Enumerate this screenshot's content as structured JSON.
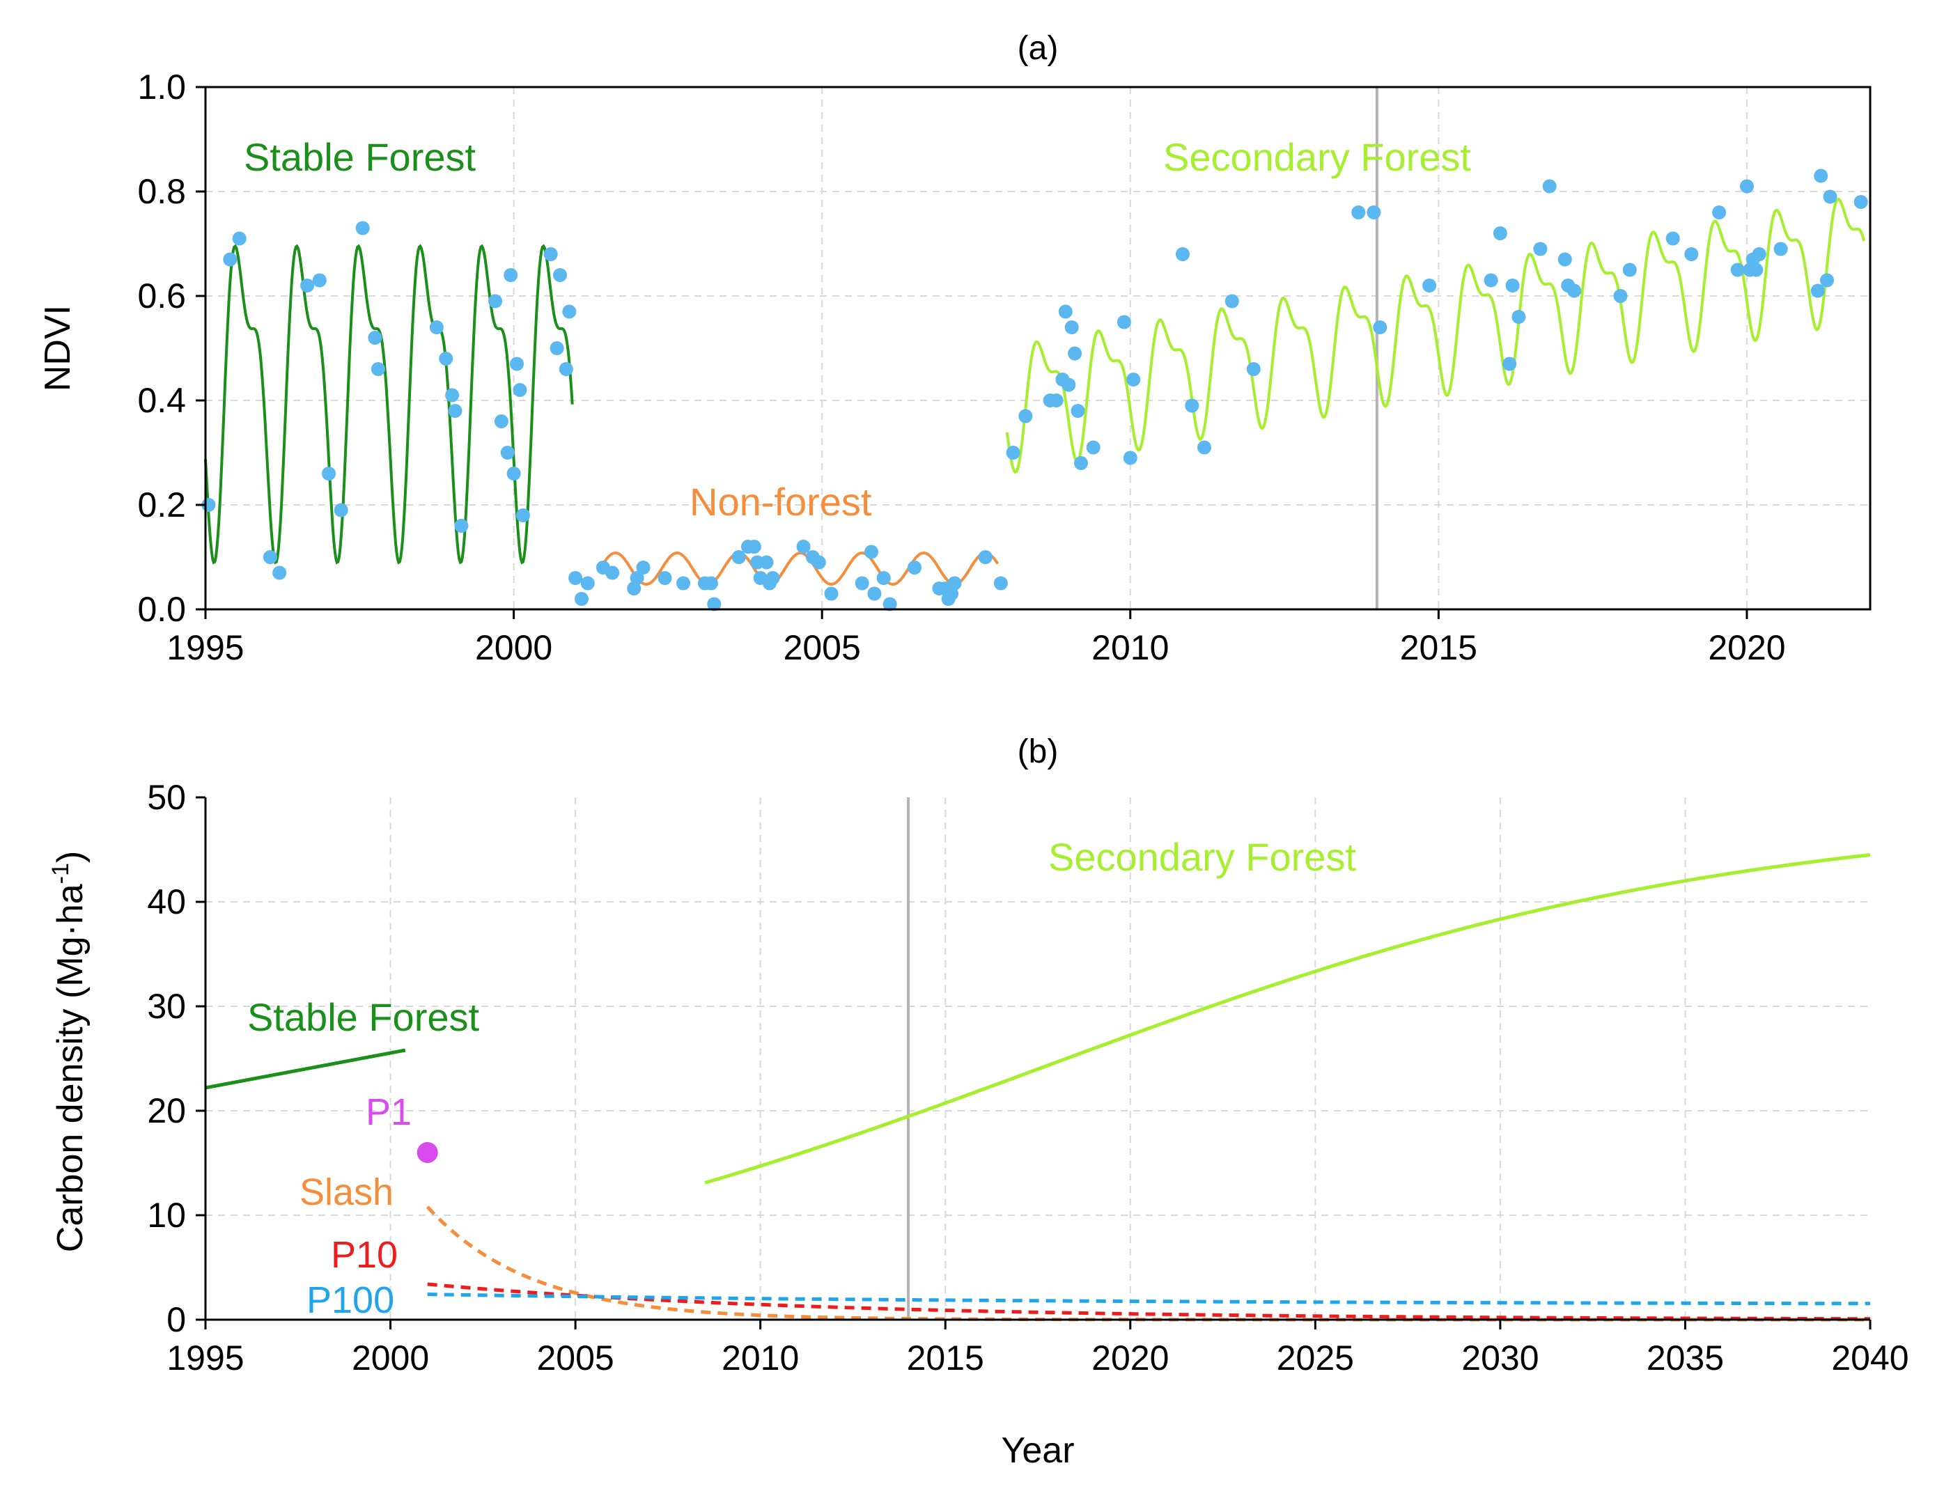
{
  "chart_data": [
    {
      "id": "a",
      "type": "line",
      "panel_label": "(a)",
      "xlabel": "",
      "ylabel": "NDVI",
      "xlim": [
        1995,
        2022
      ],
      "ylim": [
        0.0,
        1.0
      ],
      "xticks": [
        1995,
        2000,
        2005,
        2010,
        2015,
        2020
      ],
      "yticks": [
        "0.0",
        "0.2",
        "0.4",
        "0.6",
        "0.8",
        "1.0"
      ],
      "grid": true,
      "vline": 2014,
      "series": [
        {
          "name": "Stable Forest",
          "label": "Stable Forest",
          "color": "#1a8f1a",
          "kind": "seasonal",
          "start": 1995.0,
          "end": 2000.95,
          "base": 0.44,
          "trend": 0.0,
          "amp": 0.3,
          "phase": 0.35
        },
        {
          "name": "Non-forest",
          "label": "Non-forest",
          "color": "#f58d3b",
          "kind": "sine",
          "start": 2001.4,
          "end": 2007.85,
          "base": 0.078,
          "trend": 0.0,
          "amp": 0.03,
          "phase": 0.0
        },
        {
          "name": "Secondary Forest",
          "label": "Secondary Forest",
          "color": "#a6ef2e",
          "kind": "seasonal",
          "start": 2008.0,
          "end": 2021.9,
          "base": 0.4,
          "trend": 0.021,
          "amp": 0.12,
          "phase": 0.35
        }
      ],
      "observations": {
        "name": "observed NDVI",
        "color": "#5ab7ef",
        "points": [
          [
            1995.05,
            0.2
          ],
          [
            1995.4,
            0.67
          ],
          [
            1995.55,
            0.71
          ],
          [
            1996.05,
            0.1
          ],
          [
            1996.2,
            0.07
          ],
          [
            1996.65,
            0.62
          ],
          [
            1996.85,
            0.63
          ],
          [
            1997.0,
            0.26
          ],
          [
            1997.2,
            0.19
          ],
          [
            1997.55,
            0.73
          ],
          [
            1997.75,
            0.52
          ],
          [
            1997.8,
            0.46
          ],
          [
            1998.75,
            0.54
          ],
          [
            1998.9,
            0.48
          ],
          [
            1999.0,
            0.41
          ],
          [
            1999.05,
            0.38
          ],
          [
            1999.15,
            0.16
          ],
          [
            1999.7,
            0.59
          ],
          [
            1999.8,
            0.36
          ],
          [
            1999.9,
            0.3
          ],
          [
            1999.95,
            0.64
          ],
          [
            2000.0,
            0.26
          ],
          [
            2000.05,
            0.47
          ],
          [
            2000.1,
            0.42
          ],
          [
            2000.15,
            0.18
          ],
          [
            2000.6,
            0.68
          ],
          [
            2000.7,
            0.5
          ],
          [
            2000.75,
            0.64
          ],
          [
            2000.85,
            0.46
          ],
          [
            2000.9,
            0.57
          ],
          [
            2001.0,
            0.06
          ],
          [
            2001.1,
            0.02
          ],
          [
            2001.2,
            0.05
          ],
          [
            2001.45,
            0.08
          ],
          [
            2001.6,
            0.07
          ],
          [
            2001.95,
            0.04
          ],
          [
            2002.0,
            0.06
          ],
          [
            2002.1,
            0.08
          ],
          [
            2002.45,
            0.06
          ],
          [
            2002.75,
            0.05
          ],
          [
            2003.1,
            0.05
          ],
          [
            2003.2,
            0.05
          ],
          [
            2003.25,
            0.01
          ],
          [
            2003.65,
            0.1
          ],
          [
            2003.8,
            0.12
          ],
          [
            2003.9,
            0.12
          ],
          [
            2003.95,
            0.09
          ],
          [
            2004.0,
            0.06
          ],
          [
            2004.1,
            0.09
          ],
          [
            2004.15,
            0.05
          ],
          [
            2004.2,
            0.06
          ],
          [
            2004.7,
            0.12
          ],
          [
            2004.85,
            0.1
          ],
          [
            2004.95,
            0.09
          ],
          [
            2005.15,
            0.03
          ],
          [
            2005.65,
            0.05
          ],
          [
            2005.8,
            0.11
          ],
          [
            2005.85,
            0.03
          ],
          [
            2006.0,
            0.06
          ],
          [
            2006.1,
            0.01
          ],
          [
            2006.5,
            0.08
          ],
          [
            2006.9,
            0.04
          ],
          [
            2007.0,
            0.04
          ],
          [
            2007.05,
            0.02
          ],
          [
            2007.1,
            0.03
          ],
          [
            2007.15,
            0.05
          ],
          [
            2007.65,
            0.1
          ],
          [
            2007.9,
            0.05
          ],
          [
            2008.1,
            0.3
          ],
          [
            2008.3,
            0.37
          ],
          [
            2008.7,
            0.4
          ],
          [
            2008.8,
            0.4
          ],
          [
            2008.9,
            0.44
          ],
          [
            2008.95,
            0.57
          ],
          [
            2009.0,
            0.43
          ],
          [
            2009.05,
            0.54
          ],
          [
            2009.1,
            0.49
          ],
          [
            2009.15,
            0.38
          ],
          [
            2009.2,
            0.28
          ],
          [
            2009.4,
            0.31
          ],
          [
            2009.9,
            0.55
          ],
          [
            2010.0,
            0.29
          ],
          [
            2010.05,
            0.44
          ],
          [
            2010.85,
            0.68
          ],
          [
            2011.0,
            0.39
          ],
          [
            2011.2,
            0.31
          ],
          [
            2011.65,
            0.59
          ],
          [
            2012.0,
            0.46
          ],
          [
            2013.7,
            0.76
          ],
          [
            2013.95,
            0.76
          ],
          [
            2014.05,
            0.54
          ],
          [
            2014.85,
            0.62
          ],
          [
            2015.85,
            0.63
          ],
          [
            2016.0,
            0.72
          ],
          [
            2016.15,
            0.47
          ],
          [
            2016.2,
            0.62
          ],
          [
            2016.3,
            0.56
          ],
          [
            2016.65,
            0.69
          ],
          [
            2016.8,
            0.81
          ],
          [
            2017.05,
            0.67
          ],
          [
            2017.1,
            0.62
          ],
          [
            2017.2,
            0.61
          ],
          [
            2017.95,
            0.6
          ],
          [
            2018.1,
            0.65
          ],
          [
            2018.8,
            0.71
          ],
          [
            2019.1,
            0.68
          ],
          [
            2019.55,
            0.76
          ],
          [
            2019.85,
            0.65
          ],
          [
            2020.0,
            0.81
          ],
          [
            2020.05,
            0.65
          ],
          [
            2020.1,
            0.67
          ],
          [
            2020.15,
            0.65
          ],
          [
            2020.2,
            0.68
          ],
          [
            2020.55,
            0.69
          ],
          [
            2021.15,
            0.61
          ],
          [
            2021.2,
            0.83
          ],
          [
            2021.3,
            0.63
          ],
          [
            2021.35,
            0.79
          ],
          [
            2021.85,
            0.78
          ]
        ]
      }
    },
    {
      "id": "b",
      "type": "line",
      "panel_label": "(b)",
      "xlabel": "Year",
      "ylabel_base": "Carbon density (Mg·ha",
      "ylabel_sup": "-1",
      "ylabel_end": ")",
      "xlim": [
        1995,
        2040
      ],
      "ylim": [
        0,
        50
      ],
      "xticks": [
        1995,
        2000,
        2005,
        2010,
        2015,
        2020,
        2025,
        2030,
        2035,
        2040
      ],
      "yticks": [
        "0",
        "10",
        "20",
        "30",
        "40",
        "50"
      ],
      "grid": true,
      "vline": 2014,
      "series": [
        {
          "name": "Stable Forest",
          "label": "Stable Forest",
          "color": "#1a8f1a",
          "dash": false,
          "kind": "linear",
          "x0": 1995.0,
          "x1": 2000.4,
          "y0": 22.2,
          "y1": 25.8
        },
        {
          "name": "Secondary Forest",
          "label": "Secondary Forest",
          "color": "#a6ef2e",
          "dash": false,
          "kind": "logistic",
          "x0": 2008.5,
          "x1": 2040.0,
          "K": 48.5,
          "r": 0.108,
          "t0": 2017.7
        },
        {
          "name": "Slash",
          "label": "Slash",
          "color": "#f58d3b",
          "dash": true,
          "kind": "decay",
          "x0": 2001.0,
          "x1": 2040.0,
          "a": 10.8,
          "k": 0.36,
          "c": 0.0
        },
        {
          "name": "P10",
          "label": "P10",
          "color": "#ee1c1c",
          "dash": true,
          "kind": "decay",
          "x0": 2001.0,
          "x1": 2040.0,
          "a": 3.4,
          "k": 0.095,
          "c": 0.0
        },
        {
          "name": "P100",
          "label": "P100",
          "color": "#1ea5ec",
          "dash": true,
          "kind": "decay",
          "x0": 2001.0,
          "x1": 2040.0,
          "a": 0.98,
          "k": 0.06,
          "c": 1.45
        }
      ],
      "points": [
        {
          "name": "P1",
          "label": "P1",
          "color": "#d94bec",
          "x": 2001.0,
          "y": 16.0
        }
      ]
    }
  ]
}
